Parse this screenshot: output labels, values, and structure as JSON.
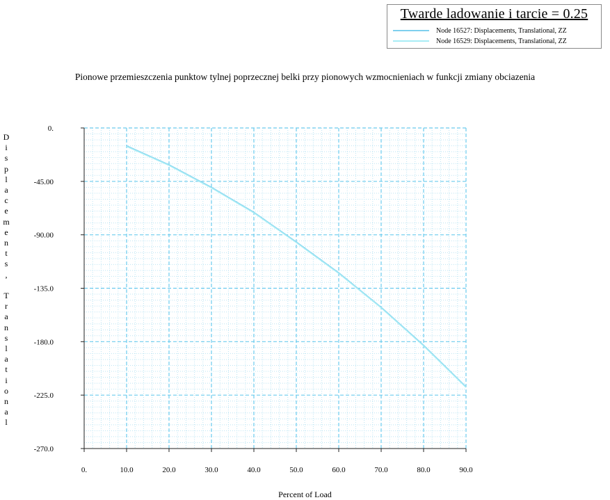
{
  "chart_data": {
    "type": "line",
    "legend": {
      "title": "Twarde ladowanie i tarcie = 0.25",
      "placement": "top-right",
      "entries": [
        {
          "label": "Node 16527: Displacements, Translational, ZZ",
          "color": "#7ecfee"
        },
        {
          "label": "Node 16529: Displacements, Translational, ZZ",
          "color": "#a7ecf5"
        }
      ]
    },
    "title": "Pionowe przemieszczenia punktow tylnej poprzecznej belki przy pionowych wzmocnieniach w funkcji zmiany obciazenia",
    "xlabel": "Percent of Load",
    "ylabel": "Displacements, Translational",
    "xlim": [
      0,
      90
    ],
    "ylim": [
      -270,
      0
    ],
    "x_ticks": [
      "0.",
      "10.0",
      "20.0",
      "30.0",
      "40.0",
      "50.0",
      "60.0",
      "70.0",
      "80.0",
      "90.0"
    ],
    "y_ticks": [
      "0.",
      "-45.00",
      "-90.00",
      "-135.0",
      "-180.0",
      "-225.0",
      "-270.0"
    ],
    "grid": true,
    "series": [
      {
        "name": "Node 16527: Displacements, Translational, ZZ",
        "color": "#7ecfee",
        "x": [
          10,
          20,
          30,
          40,
          50,
          60,
          70,
          80,
          90
        ],
        "y": [
          -15,
          -31,
          -50,
          -71,
          -96,
          -122,
          -151,
          -183,
          -218
        ]
      },
      {
        "name": "Node 16529: Displacements, Translational, ZZ",
        "color": "#a7ecf5",
        "x": [
          10,
          20,
          30,
          40,
          50,
          60,
          70,
          80,
          90
        ],
        "y": [
          -15.5,
          -31.5,
          -50.5,
          -71.5,
          -96.5,
          -122.5,
          -151.5,
          -183.5,
          -218.5
        ]
      }
    ]
  }
}
